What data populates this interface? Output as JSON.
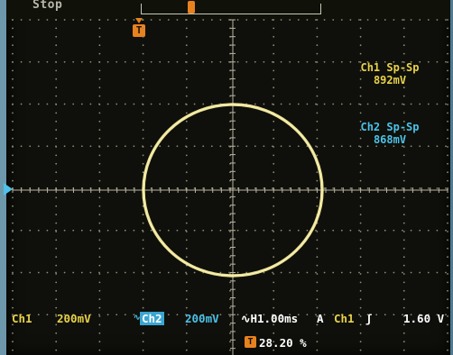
{
  "status": {
    "run_state": "Stop"
  },
  "trigger_marker": {
    "letter": "T"
  },
  "measurements": [
    {
      "label": "Ch1 Sp-Sp",
      "value": "892mV",
      "color": "#e9d24a"
    },
    {
      "label": "Ch2 Sp-Sp",
      "value": "868mV",
      "color": "#4cc2e8"
    }
  ],
  "bottom": {
    "ch1_label": "Ch1",
    "ch1_scale": "200mV",
    "ch2_bw": "∿",
    "ch2_label": "Ch2",
    "ch2_scale": "200mV",
    "timebase": "∿H1.00ms",
    "trigger_mode": "A",
    "trigger_source": "Ch1",
    "trigger_slope": "ʃ",
    "trigger_level": "1.60 V"
  },
  "trigger_position": {
    "letter": "T",
    "value": "28.20 %"
  },
  "trace": {
    "mode": "XY",
    "shape": "circle",
    "color": "#f4eb9a"
  }
}
